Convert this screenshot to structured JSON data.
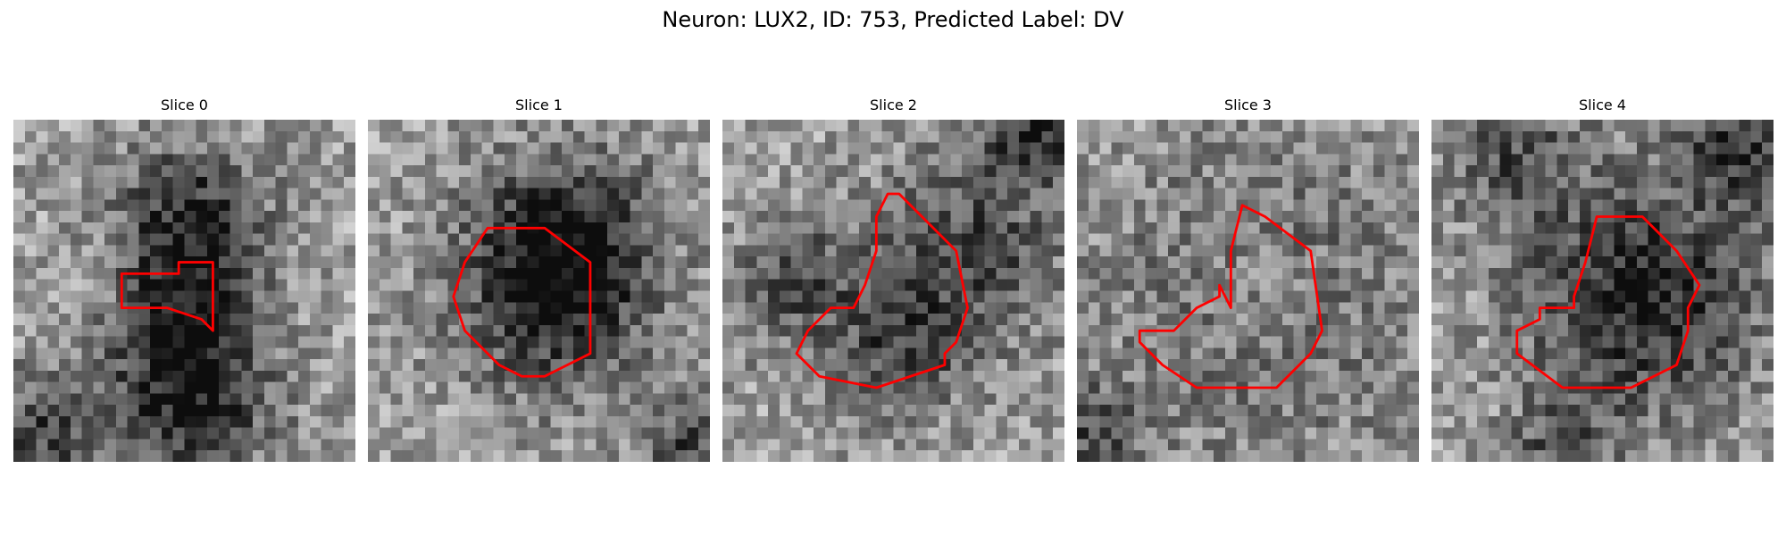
{
  "figure": {
    "title": "Neuron: LUX2, ID: 753, Predicted Label: DV",
    "contour_color": "#ff0000",
    "panels": [
      {
        "title": "Slice 0"
      },
      {
        "title": "Slice 1"
      },
      {
        "title": "Slice 2"
      },
      {
        "title": "Slice 3"
      },
      {
        "title": "Slice 4"
      }
    ]
  }
}
